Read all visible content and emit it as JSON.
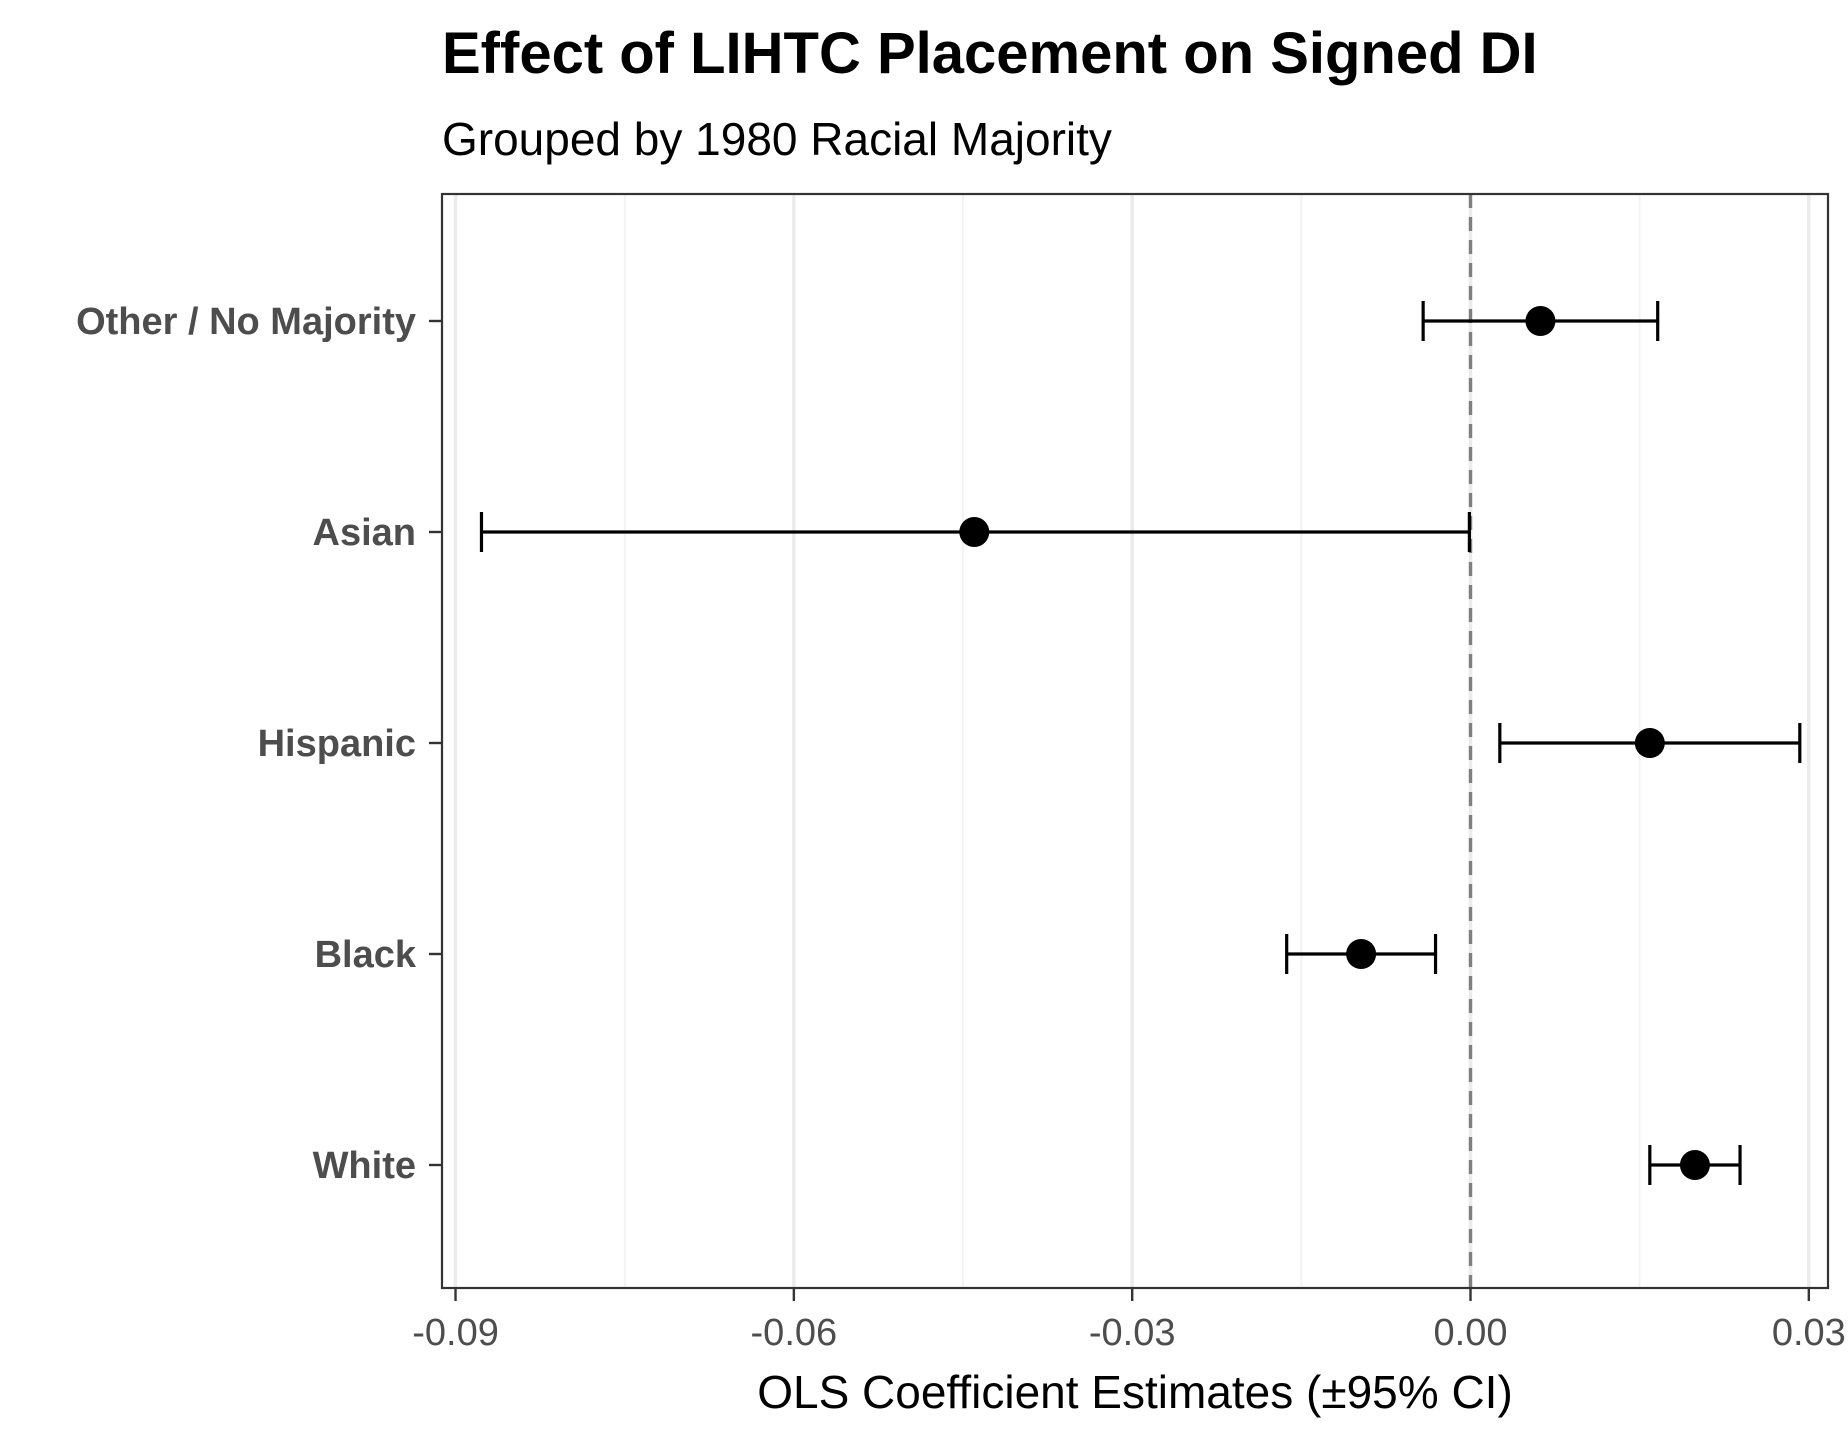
{
  "chart_data": {
    "type": "scatter",
    "title": "Effect of LIHTC Placement on Signed DI",
    "subtitle": "Grouped by 1980 Racial Majority",
    "xlabel": "OLS Coefficient Estimates (±95% CI)",
    "ylabel": "",
    "xlim": [
      -0.0912,
      0.0317
    ],
    "xticks": [
      -0.09,
      -0.06,
      -0.03,
      0.0,
      0.03
    ],
    "xtick_labels": [
      "-0.09",
      "-0.06",
      "-0.03",
      "0.00",
      "0.03"
    ],
    "categories": [
      "Other / No Majority",
      "Asian",
      "Hispanic",
      "Black",
      "White"
    ],
    "points": [
      {
        "category": "Other / No Majority",
        "estimate": 0.0062,
        "ci_low": -0.0042,
        "ci_high": 0.0166
      },
      {
        "category": "Asian",
        "estimate": -0.044,
        "ci_low": -0.0877,
        "ci_high": -0.0001
      },
      {
        "category": "Hispanic",
        "estimate": 0.0159,
        "ci_low": 0.0026,
        "ci_high": 0.0292
      },
      {
        "category": "Black",
        "estimate": -0.0097,
        "ci_low": -0.0163,
        "ci_high": -0.0031
      },
      {
        "category": "White",
        "estimate": 0.0199,
        "ci_low": 0.0159,
        "ci_high": 0.0239
      }
    ],
    "reference_line": 0,
    "grid": true,
    "legend": "none"
  },
  "colors": {
    "point": "#000000",
    "errorbar": "#000000",
    "reference_line": "#7f7f7f",
    "grid_major": "#ebebeb",
    "grid_minor": "#f3f3f3",
    "panel_border": "#333333",
    "tick_text": "#4d4d4d"
  }
}
